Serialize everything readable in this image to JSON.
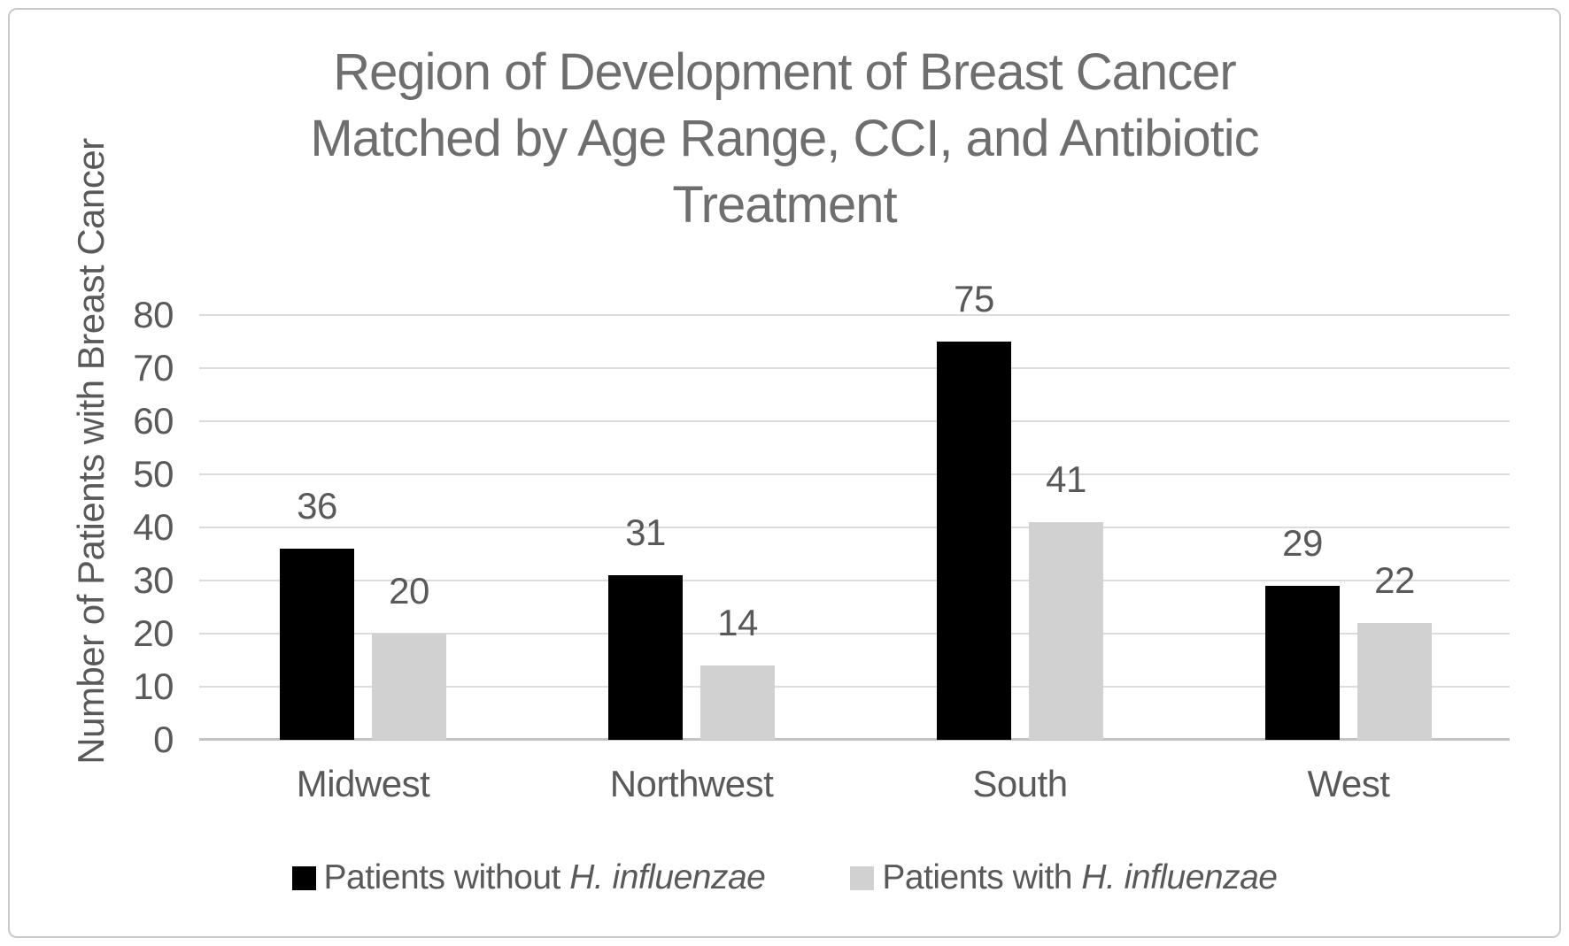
{
  "chart_data": {
    "type": "bar",
    "title": "Region of Development of Breast Cancer Matched by Age Range, CCI, and Antibiotic Treatment",
    "title_lines": [
      "Region of Development of Breast Cancer",
      "Matched by Age Range, CCI, and Antibiotic",
      "Treatment"
    ],
    "ylabel": "Number of Patients with Breast Cancer",
    "xlabel": "",
    "categories": [
      "Midwest",
      "Northwest",
      "South",
      "West"
    ],
    "series": [
      {
        "id": "without-h-influenzae",
        "name": "Patients without H. influenzae",
        "label_prefix": "Patients without",
        "label_italic": "H. influenzae",
        "color": "#000000",
        "values": [
          36,
          31,
          75,
          29
        ]
      },
      {
        "id": "with-h-influenzae",
        "name": "Patients with H. influenzae",
        "label_prefix": "Patients with",
        "label_italic": "H. influenzae",
        "color": "#d1d1d1",
        "values": [
          20,
          14,
          41,
          22
        ]
      }
    ],
    "ylim": [
      0,
      80
    ],
    "yticks": [
      0,
      10,
      20,
      30,
      40,
      50,
      60,
      70,
      80
    ],
    "grid": true,
    "legend_position": "bottom",
    "data_labels": true
  },
  "colors": {
    "grid": "#dcdcdc",
    "axis": "#c3c3c3",
    "tick_text": "#595959",
    "title_text": "#6e6e6e",
    "border": "#c9c9c9",
    "background": "#ffffff"
  }
}
